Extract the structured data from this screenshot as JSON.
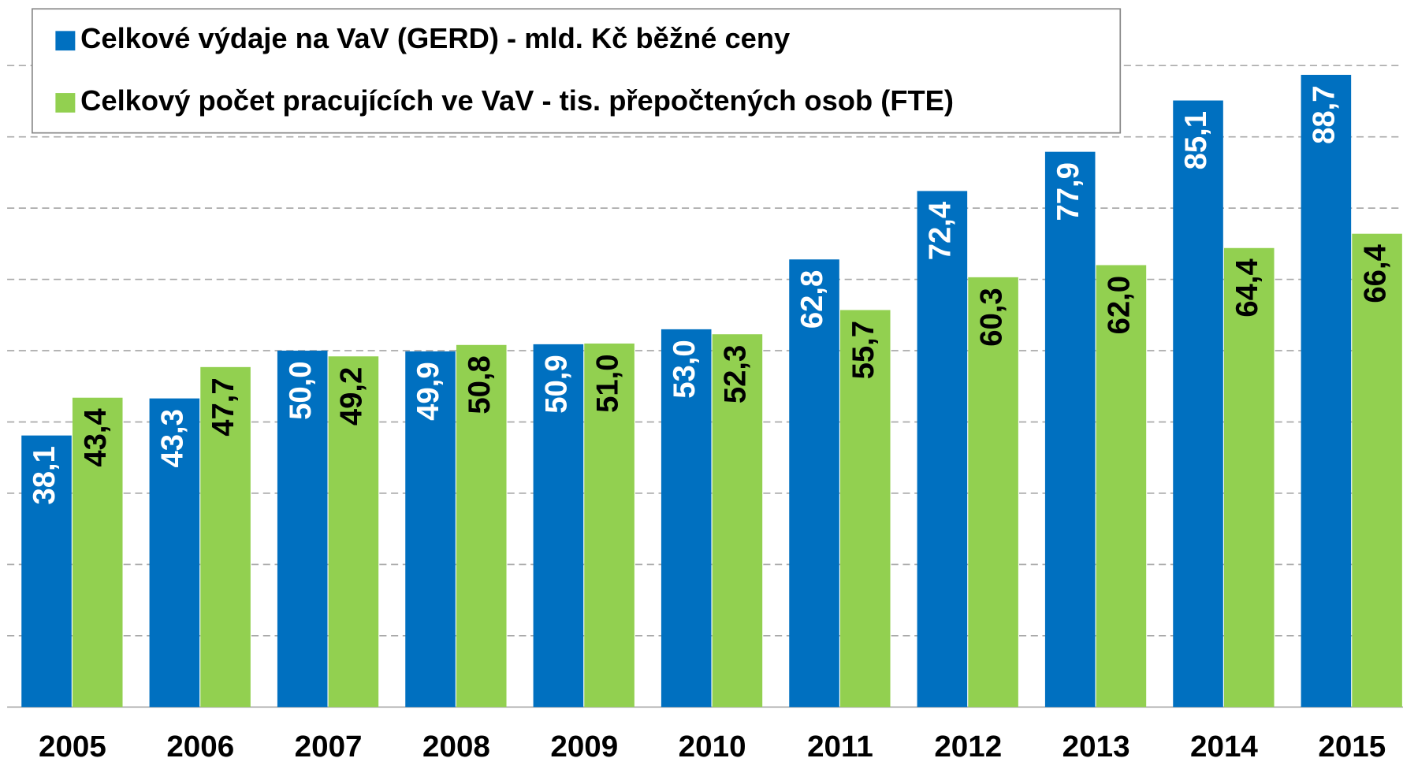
{
  "chart_data": {
    "type": "bar",
    "categories": [
      "2005",
      "2006",
      "2007",
      "2008",
      "2009",
      "2010",
      "2011",
      "2012",
      "2013",
      "2014",
      "2015"
    ],
    "series": [
      {
        "name": "Celkové výdaje na VaV (GERD) - mld. Kč běžné ceny",
        "color": "#0070c0",
        "values": [
          38.1,
          43.3,
          50.0,
          49.9,
          50.9,
          53.0,
          62.8,
          72.4,
          77.9,
          85.1,
          88.7
        ],
        "value_labels": [
          "38,1",
          "43,3",
          "50,0",
          "49,9",
          "50,9",
          "53,0",
          "62,8",
          "72,4",
          "77,9",
          "85,1",
          "88,7"
        ]
      },
      {
        "name": "Celkový počet pracujících ve VaV - tis. přepočtených osob (FTE)",
        "color": "#92d050",
        "values": [
          43.4,
          47.7,
          49.2,
          50.8,
          51.0,
          52.3,
          55.7,
          60.3,
          62.0,
          64.4,
          66.4
        ],
        "value_labels": [
          "43,4",
          "47,7",
          "49,2",
          "50,8",
          "51,0",
          "52,3",
          "55,7",
          "60,3",
          "62,0",
          "64,4",
          "66,4"
        ]
      }
    ],
    "ylim": [
      0,
      90
    ],
    "yticks": [
      0,
      10,
      20,
      30,
      40,
      50,
      60,
      70,
      80,
      90
    ],
    "grid": true
  }
}
